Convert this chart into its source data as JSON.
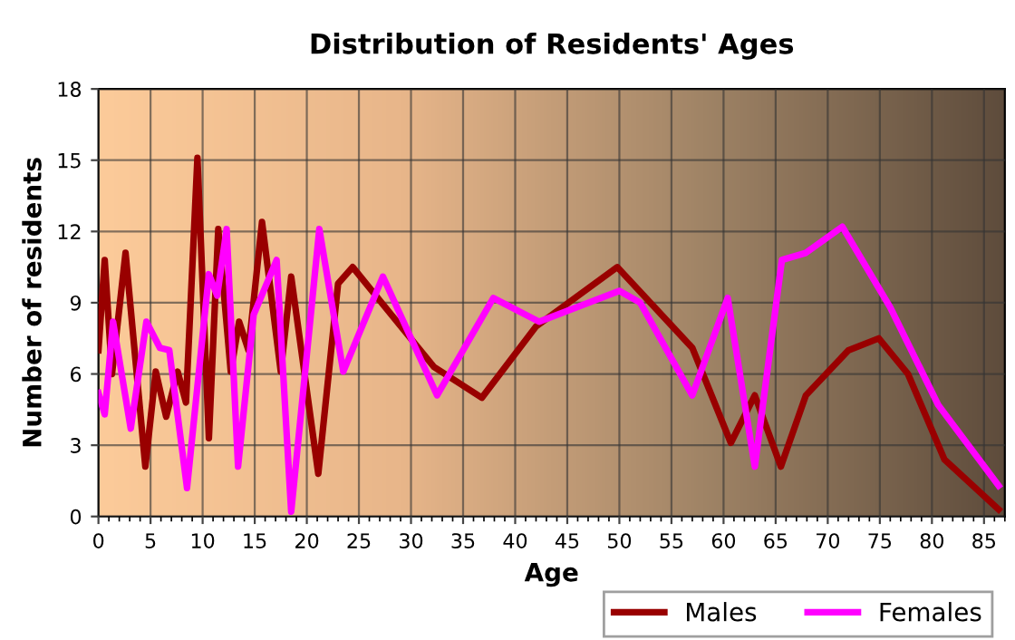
{
  "chart_data": {
    "type": "line",
    "title": "Distribution of Residents' Ages",
    "xlabel": "Age",
    "ylabel": "Number of residents",
    "xlim": [
      0,
      87
    ],
    "ylim": [
      0,
      18
    ],
    "xticks": [
      0,
      5,
      10,
      15,
      20,
      25,
      30,
      35,
      40,
      45,
      50,
      55,
      60,
      65,
      70,
      75,
      80,
      85
    ],
    "yticks": [
      0,
      3,
      6,
      9,
      12,
      15,
      18
    ],
    "grid": true,
    "legend": "bottom",
    "marker": "none",
    "line_style": "solid",
    "series": [
      {
        "name": "Males",
        "color": "#990000",
        "x": [
          0,
          0.6,
          1.3,
          2.6,
          4.5,
          5.5,
          6.5,
          7.6,
          8.4,
          9.5,
          10.6,
          11.5,
          12.7,
          13.5,
          14.4,
          15.7,
          17.5,
          18.5,
          21.1,
          23,
          24.4,
          28.1,
          32.2,
          36.8,
          42,
          49.8,
          57,
          60.7,
          63,
          65.5,
          67.9,
          72,
          74.9,
          77.7,
          81.2,
          86.4
        ],
        "values": [
          7.0,
          10.8,
          6.0,
          11.1,
          2.1,
          6.1,
          4.2,
          6.1,
          4.8,
          15.1,
          3.3,
          12.1,
          6.1,
          8.2,
          7.0,
          12.4,
          6.1,
          10.1,
          1.8,
          9.8,
          10.5,
          8.5,
          6.3,
          5.0,
          8.0,
          10.5,
          7.1,
          3.1,
          5.1,
          2.1,
          5.1,
          7.0,
          7.5,
          6.0,
          2.4,
          0.3
        ]
      },
      {
        "name": "Females",
        "color": "#ff00ff",
        "x": [
          0,
          0.6,
          1.4,
          3.1,
          4.6,
          5.9,
          6.8,
          8.5,
          10.6,
          11.4,
          12.3,
          13.4,
          14.9,
          17.1,
          18.5,
          21.2,
          23.5,
          27.3,
          32.5,
          37.9,
          42.3,
          50,
          52,
          57,
          60.4,
          63,
          65.6,
          67.9,
          71.4,
          76,
          80.6,
          86.4
        ],
        "values": [
          5.2,
          4.3,
          8.2,
          3.7,
          8.2,
          7.1,
          7.0,
          1.2,
          10.2,
          9.3,
          12.1,
          2.1,
          8.5,
          10.8,
          0.2,
          12.1,
          6.1,
          10.1,
          5.1,
          9.2,
          8.2,
          9.5,
          9.0,
          5.1,
          9.2,
          2.1,
          10.8,
          11.1,
          12.2,
          8.8,
          4.7,
          1.3
        ]
      }
    ]
  }
}
